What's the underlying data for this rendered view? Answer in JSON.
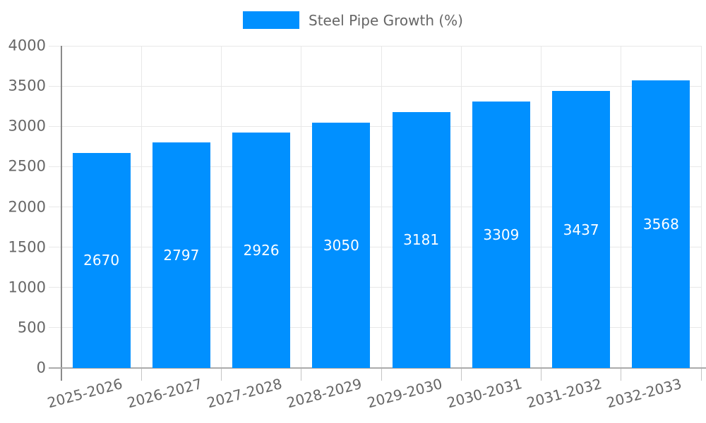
{
  "colors": {
    "bar": "#0190ff",
    "grid": "#e8e8e8",
    "axis": "#8a8a8a",
    "baseline": "#ababab",
    "tick": "#c4c4c4",
    "tick_text": "#666666",
    "bar_label_text": "#ffffff"
  },
  "legend": {
    "label": "Steel Pipe Growth (%)",
    "position": "top"
  },
  "chart_data": {
    "type": "bar",
    "title": "Steel Pipe Growth (%)",
    "categories": [
      "2025-2026",
      "2026-2027",
      "2027-2028",
      "2028-2029",
      "2029-2030",
      "2030-2031",
      "2031-2032",
      "2032-2033"
    ],
    "values": [
      2670,
      2797,
      2926,
      3050,
      3181,
      3309,
      3437,
      3568
    ],
    "series": [
      {
        "name": "Steel Pipe Growth (%)",
        "values": [
          2670,
          2797,
          2926,
          3050,
          3181,
          3309,
          3437,
          3568
        ]
      }
    ],
    "xlabel": "",
    "ylabel": "",
    "ylim": [
      0,
      4000
    ],
    "yticks": [
      0,
      500,
      1000,
      1500,
      2000,
      2500,
      3000,
      3500,
      4000
    ],
    "grid": true,
    "value_labels": "inside-center",
    "legend_position": "top"
  }
}
